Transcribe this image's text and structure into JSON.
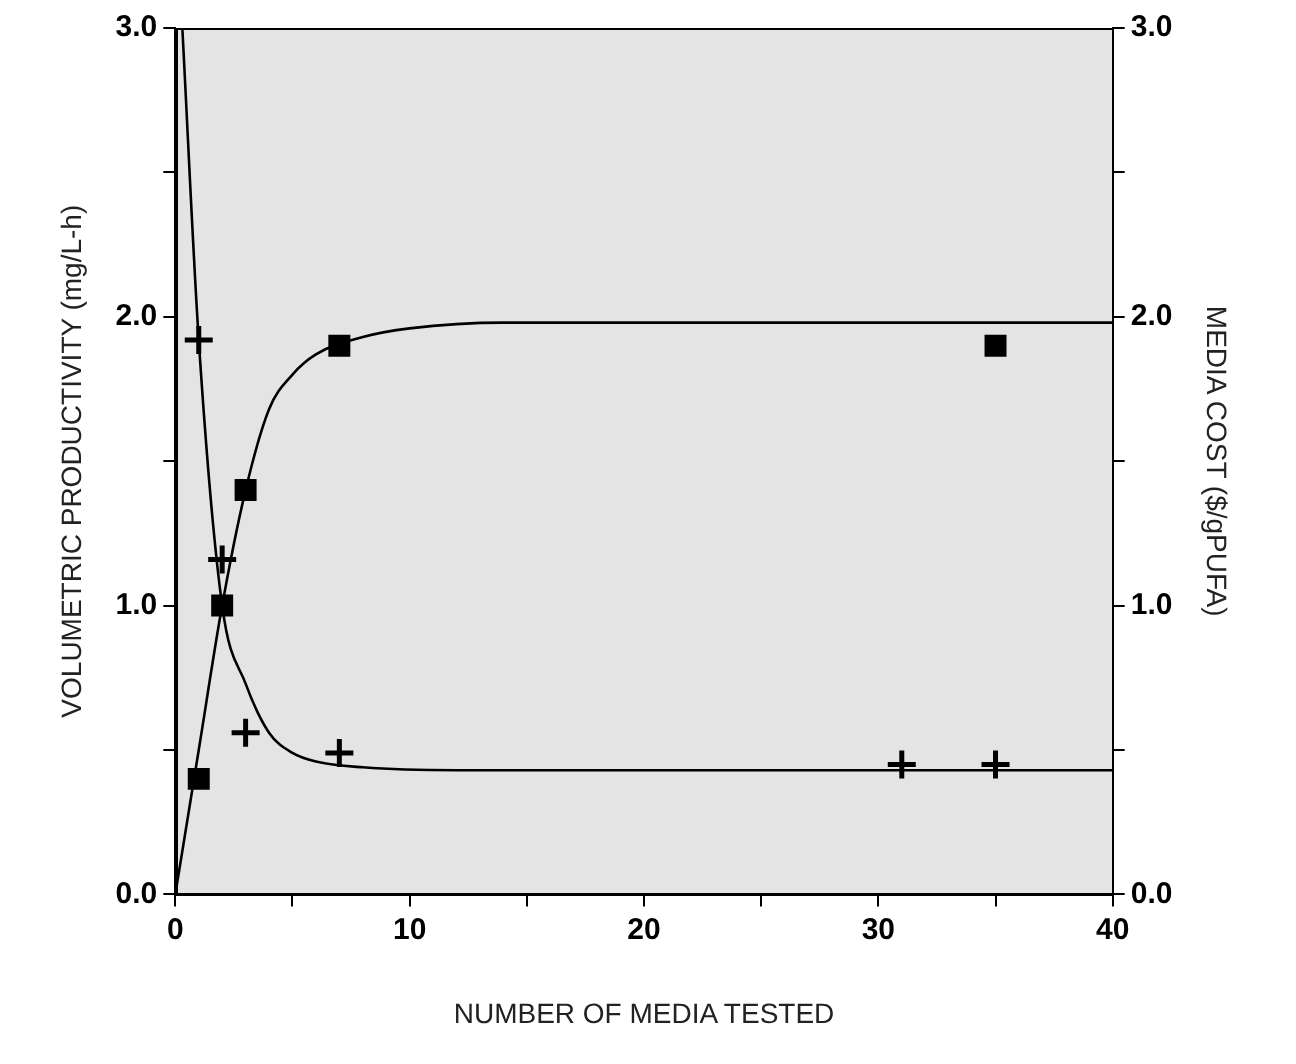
{
  "chart_data": {
    "type": "scatter",
    "xlabel": "NUMBER OF MEDIA TESTED",
    "ylabel": "VOLUMETRIC PRODUCTIVITY (mg/L-h)",
    "y2label": "MEDIA COST ($/gPUFA)",
    "xlim": [
      0,
      40
    ],
    "xticks": [
      0,
      {
        "value": 5,
        "label": null
      },
      10,
      {
        "value": 15,
        "label": null
      },
      20,
      {
        "value": 25,
        "label": null
      },
      30,
      {
        "value": 35,
        "label": null
      },
      40
    ],
    "ylim": [
      0,
      3
    ],
    "yticks": [
      {
        "value": 0,
        "label": "0.0"
      },
      {
        "value": 0.5,
        "label": null
      },
      {
        "value": 1,
        "label": "1.0"
      },
      {
        "value": 1.5,
        "label": null
      },
      {
        "value": 2,
        "label": "2.0"
      },
      {
        "value": 2.5,
        "label": null
      },
      {
        "value": 3,
        "label": "3.0"
      }
    ],
    "y2lim": [
      0,
      3
    ],
    "y2ticks": [
      {
        "value": 0,
        "label": "0.0"
      },
      {
        "value": 0.5,
        "label": null
      },
      {
        "value": 1,
        "label": "1.0"
      },
      {
        "value": 1.5,
        "label": null
      },
      {
        "value": 2,
        "label": "2.0"
      },
      {
        "value": 2.5,
        "label": null
      },
      {
        "value": 3,
        "label": "3.0"
      }
    ],
    "grid": false,
    "legend": false,
    "series": [
      {
        "marker": "square",
        "color": "#000000",
        "x": [
          1,
          2,
          3,
          7,
          35
        ],
        "values": [
          0.4,
          1.0,
          1.4,
          1.9,
          1.9
        ]
      },
      {
        "marker": "cross",
        "axis": "y2",
        "color": "#000000",
        "x": [
          1,
          2,
          3,
          7,
          31,
          35
        ],
        "values": [
          1.92,
          1.16,
          0.56,
          0.49,
          0.45,
          0.45
        ]
      },
      {
        "type": "line",
        "marker": "none",
        "color": "#000000",
        "x": [
          0,
          1,
          2,
          3,
          4,
          5,
          6,
          8,
          10,
          14,
          20,
          40
        ],
        "values": [
          0,
          0.5,
          1.0,
          1.4,
          1.68,
          1.8,
          1.87,
          1.93,
          1.96,
          1.98,
          1.98,
          1.98
        ]
      },
      {
        "type": "line",
        "marker": "none",
        "axis": "y2",
        "color": "#000000",
        "x": [
          0.3,
          1,
          2,
          3,
          4,
          5,
          6,
          8,
          12,
          40
        ],
        "values": [
          3.0,
          1.92,
          1.0,
          0.73,
          0.56,
          0.49,
          0.46,
          0.44,
          0.43,
          0.43
        ]
      }
    ]
  }
}
